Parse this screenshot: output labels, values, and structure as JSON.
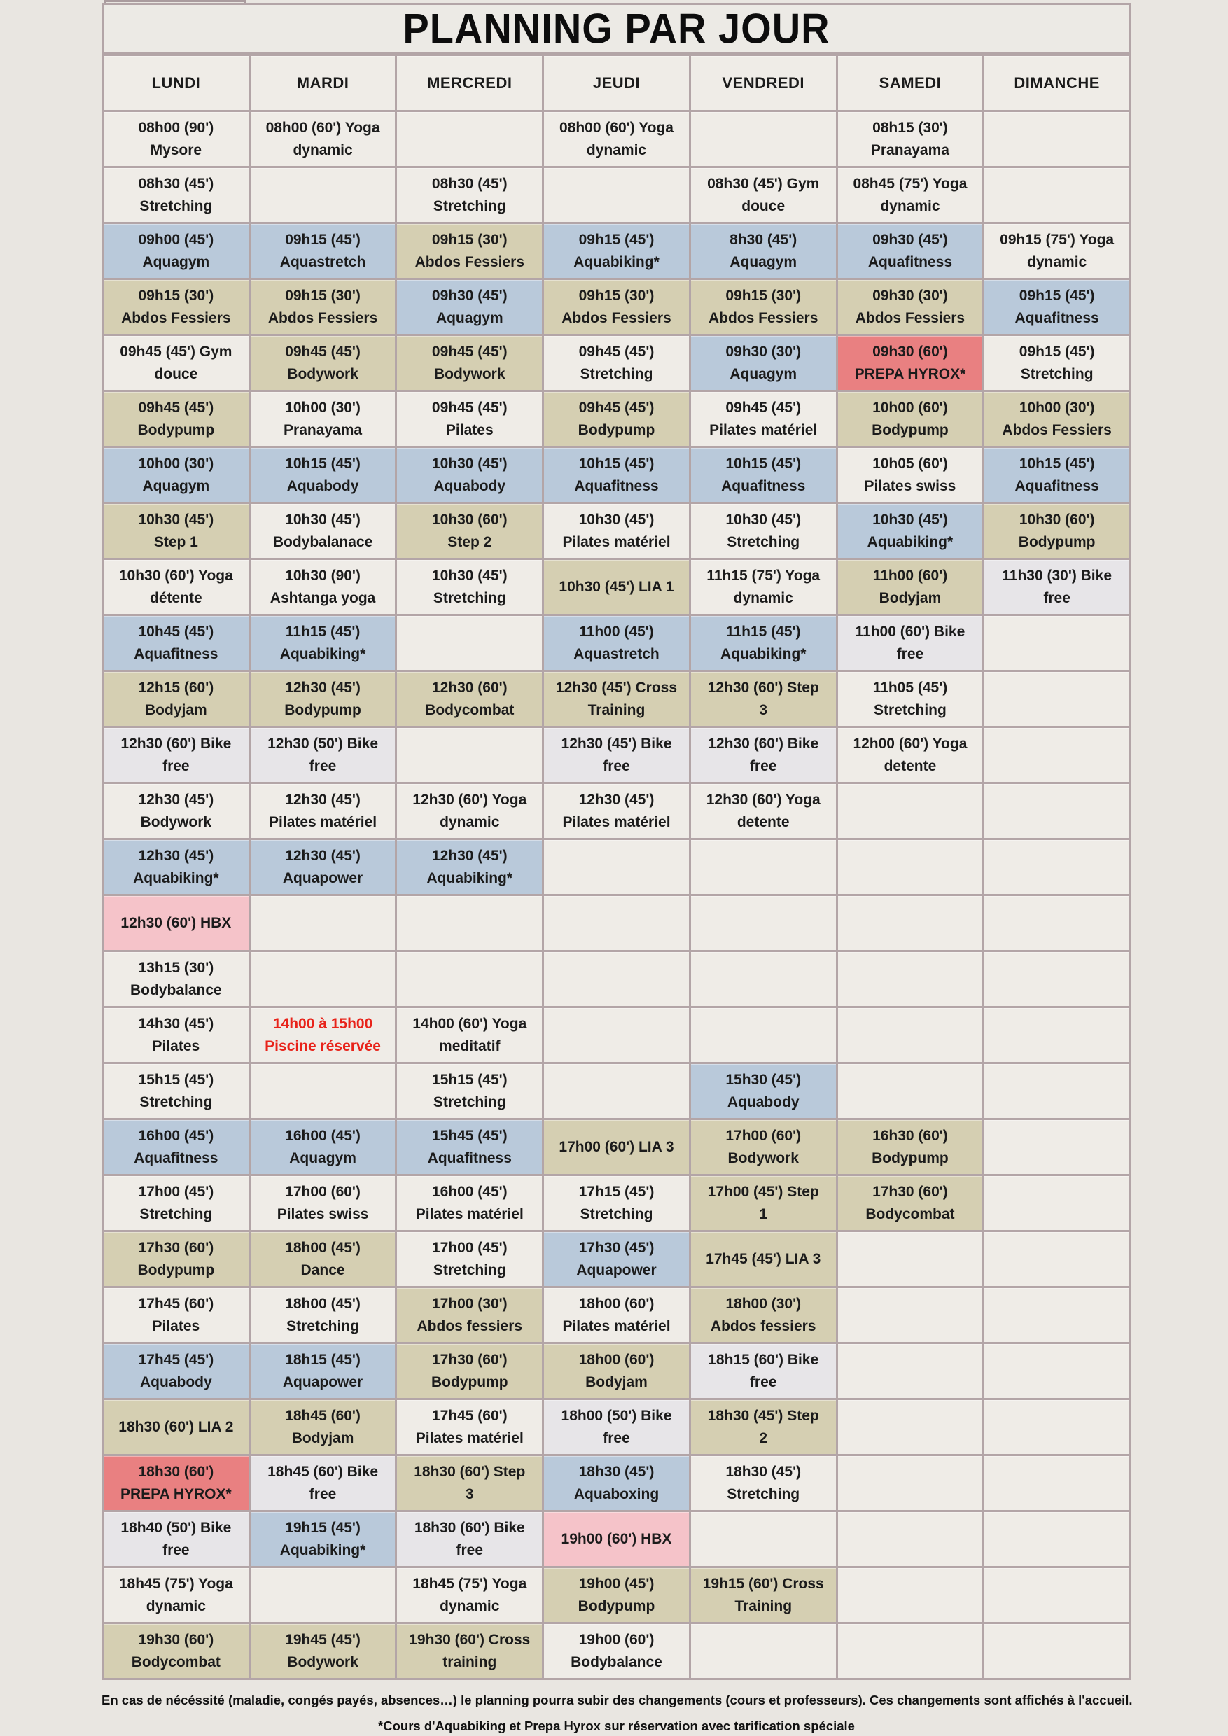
{
  "title": "PLANNING PAR JOUR",
  "days": [
    "LUNDI",
    "MARDI",
    "MERCREDI",
    "JEUDI",
    "VENDREDI",
    "SAMEDI",
    "DIMANCHE"
  ],
  "colors": {
    "light": "#efece7",
    "gray": "#e7e5e8",
    "khaki": "#d5cfb2",
    "blue": "#b9c9da",
    "red": "#e98081",
    "pink": "#f5c3c9",
    "red_text": "#e8231a",
    "border": "#b3a5a7",
    "page_bg": "#e9e6e1"
  },
  "rows": [
    [
      {
        "lines": [
          "08h00 (90')",
          "Mysore"
        ],
        "color": "light"
      },
      {
        "lines": [
          "08h00 (60') Yoga",
          "dynamic"
        ],
        "color": "light"
      },
      null,
      {
        "lines": [
          "08h00 (60') Yoga",
          "dynamic"
        ],
        "color": "light"
      },
      null,
      {
        "lines": [
          "08h15 (30')",
          "Pranayama"
        ],
        "color": "light"
      },
      null
    ],
    [
      {
        "lines": [
          "08h30 (45')",
          "Stretching"
        ],
        "color": "light"
      },
      null,
      {
        "lines": [
          "08h30 (45')",
          "Stretching"
        ],
        "color": "light"
      },
      null,
      {
        "lines": [
          "08h30 (45') Gym",
          "douce"
        ],
        "color": "light"
      },
      {
        "lines": [
          "08h45 (75') Yoga",
          "dynamic"
        ],
        "color": "light"
      },
      null
    ],
    [
      {
        "lines": [
          "09h00 (45')",
          "Aquagym"
        ],
        "color": "blue"
      },
      {
        "lines": [
          "09h15 (45')",
          "Aquastretch"
        ],
        "color": "blue"
      },
      {
        "lines": [
          "09h15 (30')",
          "Abdos Fessiers"
        ],
        "color": "khaki"
      },
      {
        "lines": [
          "09h15 (45')",
          "Aquabiking*"
        ],
        "color": "blue"
      },
      {
        "lines": [
          "8h30 (45')",
          "Aquagym"
        ],
        "color": "blue"
      },
      {
        "lines": [
          "09h30 (45')",
          "Aquafitness"
        ],
        "color": "blue"
      },
      {
        "lines": [
          "09h15 (75') Yoga",
          "dynamic"
        ],
        "color": "light"
      }
    ],
    [
      {
        "lines": [
          "09h15 (30')",
          "Abdos Fessiers"
        ],
        "color": "khaki"
      },
      {
        "lines": [
          "09h15 (30')",
          "Abdos Fessiers"
        ],
        "color": "khaki"
      },
      {
        "lines": [
          "09h30 (45')",
          "Aquagym"
        ],
        "color": "blue"
      },
      {
        "lines": [
          "09h15 (30')",
          "Abdos Fessiers"
        ],
        "color": "khaki"
      },
      {
        "lines": [
          "09h15 (30')",
          "Abdos Fessiers"
        ],
        "color": "khaki"
      },
      {
        "lines": [
          "09h30 (30')",
          "Abdos Fessiers"
        ],
        "color": "khaki"
      },
      {
        "lines": [
          "09h15 (45')",
          "Aquafitness"
        ],
        "color": "blue"
      }
    ],
    [
      {
        "lines": [
          "09h45 (45') Gym",
          "douce"
        ],
        "color": "light"
      },
      {
        "lines": [
          "09h45 (45')",
          "Bodywork"
        ],
        "color": "khaki"
      },
      {
        "lines": [
          "09h45 (45')",
          "Bodywork"
        ],
        "color": "khaki"
      },
      {
        "lines": [
          "09h45 (45')",
          "Stretching"
        ],
        "color": "light"
      },
      {
        "lines": [
          "09h30 (30')",
          "Aquagym"
        ],
        "color": "blue"
      },
      {
        "lines": [
          "09h30 (60')",
          "PREPA HYROX*"
        ],
        "color": "red"
      },
      {
        "lines": [
          "09h15 (45')",
          "Stretching"
        ],
        "color": "light"
      }
    ],
    [
      {
        "lines": [
          "09h45 (45')",
          "Bodypump"
        ],
        "color": "khaki"
      },
      {
        "lines": [
          "10h00 (30')",
          "Pranayama"
        ],
        "color": "light"
      },
      {
        "lines": [
          "09h45 (45')",
          "Pilates"
        ],
        "color": "light"
      },
      {
        "lines": [
          "09h45 (45')",
          "Bodypump"
        ],
        "color": "khaki"
      },
      {
        "lines": [
          "09h45 (45')",
          "Pilates matériel"
        ],
        "color": "light"
      },
      {
        "lines": [
          "10h00 (60')",
          "Bodypump"
        ],
        "color": "khaki"
      },
      {
        "lines": [
          "10h00 (30')",
          "Abdos Fessiers"
        ],
        "color": "khaki"
      }
    ],
    [
      {
        "lines": [
          "10h00 (30')",
          "Aquagym"
        ],
        "color": "blue"
      },
      {
        "lines": [
          "10h15 (45')",
          "Aquabody"
        ],
        "color": "blue"
      },
      {
        "lines": [
          "10h30 (45')",
          "Aquabody"
        ],
        "color": "blue"
      },
      {
        "lines": [
          "10h15 (45')",
          "Aquafitness"
        ],
        "color": "blue"
      },
      {
        "lines": [
          "10h15 (45')",
          "Aquafitness"
        ],
        "color": "blue"
      },
      {
        "lines": [
          "10h05 (60')",
          "Pilates swiss"
        ],
        "color": "light"
      },
      {
        "lines": [
          "10h15 (45')",
          "Aquafitness"
        ],
        "color": "blue"
      }
    ],
    [
      {
        "lines": [
          "10h30 (45')",
          "Step 1"
        ],
        "color": "khaki"
      },
      {
        "lines": [
          "10h30 (45')",
          "Bodybalanace"
        ],
        "color": "light"
      },
      {
        "lines": [
          "10h30 (60')",
          "Step 2"
        ],
        "color": "khaki"
      },
      {
        "lines": [
          "10h30 (45')",
          "Pilates matériel"
        ],
        "color": "light"
      },
      {
        "lines": [
          "10h30 (45')",
          "Stretching"
        ],
        "color": "light"
      },
      {
        "lines": [
          "10h30 (45')",
          "Aquabiking*"
        ],
        "color": "blue"
      },
      {
        "lines": [
          "10h30 (60')",
          "Bodypump"
        ],
        "color": "khaki"
      }
    ],
    [
      {
        "lines": [
          "10h30 (60') Yoga",
          "détente"
        ],
        "color": "light"
      },
      {
        "lines": [
          "10h30 (90')",
          "Ashtanga yoga"
        ],
        "color": "light"
      },
      {
        "lines": [
          "10h30 (45')",
          "Stretching"
        ],
        "color": "light"
      },
      {
        "lines": [
          "10h30 (45') LIA 1"
        ],
        "color": "khaki"
      },
      {
        "lines": [
          "11h15 (75') Yoga",
          "dynamic"
        ],
        "color": "light"
      },
      {
        "lines": [
          "11h00 (60')",
          "Bodyjam"
        ],
        "color": "khaki"
      },
      {
        "lines": [
          "11h30 (30') Bike",
          "free"
        ],
        "color": "gray"
      }
    ],
    [
      {
        "lines": [
          "10h45 (45')",
          "Aquafitness"
        ],
        "color": "blue"
      },
      {
        "lines": [
          "11h15 (45')",
          "Aquabiking*"
        ],
        "color": "blue"
      },
      null,
      {
        "lines": [
          "11h00 (45')",
          "Aquastretch"
        ],
        "color": "blue"
      },
      {
        "lines": [
          "11h15 (45')",
          "Aquabiking*"
        ],
        "color": "blue"
      },
      {
        "lines": [
          "11h00 (60') Bike",
          "free"
        ],
        "color": "gray"
      },
      null
    ],
    [
      {
        "lines": [
          "12h15 (60')",
          "Bodyjam"
        ],
        "color": "khaki"
      },
      {
        "lines": [
          "12h30 (45')",
          "Bodypump"
        ],
        "color": "khaki"
      },
      {
        "lines": [
          "12h30 (60')",
          "Bodycombat"
        ],
        "color": "khaki"
      },
      {
        "lines": [
          "12h30 (45') Cross",
          "Training"
        ],
        "color": "khaki"
      },
      {
        "lines": [
          "12h30 (60') Step",
          "3"
        ],
        "color": "khaki"
      },
      {
        "lines": [
          "11h05 (45')",
          "Stretching"
        ],
        "color": "light"
      },
      null
    ],
    [
      {
        "lines": [
          "12h30 (60') Bike",
          "free"
        ],
        "color": "gray"
      },
      {
        "lines": [
          "12h30 (50') Bike",
          "free"
        ],
        "color": "gray"
      },
      null,
      {
        "lines": [
          "12h30 (45') Bike",
          "free"
        ],
        "color": "gray"
      },
      {
        "lines": [
          "12h30 (60') Bike",
          "free"
        ],
        "color": "gray"
      },
      {
        "lines": [
          "12h00 (60') Yoga",
          "detente"
        ],
        "color": "light"
      },
      null
    ],
    [
      {
        "lines": [
          "12h30 (45')",
          "Bodywork"
        ],
        "color": "light"
      },
      {
        "lines": [
          "12h30 (45')",
          "Pilates matériel"
        ],
        "color": "light"
      },
      {
        "lines": [
          "12h30 (60') Yoga",
          "dynamic"
        ],
        "color": "light"
      },
      {
        "lines": [
          "12h30 (45')",
          "Pilates matériel"
        ],
        "color": "light"
      },
      {
        "lines": [
          "12h30 (60') Yoga",
          "detente"
        ],
        "color": "light"
      },
      null,
      null
    ],
    [
      {
        "lines": [
          "12h30 (45')",
          "Aquabiking*"
        ],
        "color": "blue"
      },
      {
        "lines": [
          "12h30 (45')",
          "Aquapower"
        ],
        "color": "blue"
      },
      {
        "lines": [
          "12h30 (45')",
          "Aquabiking*"
        ],
        "color": "blue"
      },
      null,
      null,
      null,
      null
    ],
    [
      {
        "lines": [
          "12h30 (60') HBX"
        ],
        "color": "pink"
      },
      null,
      null,
      null,
      null,
      null,
      null
    ],
    [
      {
        "lines": [
          "13h15 (30')",
          "Bodybalance"
        ],
        "color": "light"
      },
      null,
      null,
      null,
      null,
      null,
      null
    ],
    [
      {
        "lines": [
          "14h30 (45')",
          "Pilates"
        ],
        "color": "light"
      },
      {
        "lines": [
          "14h00 à 15h00",
          "Piscine réservée"
        ],
        "color": "light",
        "text_color": "red"
      },
      {
        "lines": [
          "14h00 (60') Yoga",
          "meditatif"
        ],
        "color": "light"
      },
      null,
      null,
      null,
      null
    ],
    [
      {
        "lines": [
          "15h15 (45')",
          "Stretching"
        ],
        "color": "light"
      },
      null,
      {
        "lines": [
          "15h15 (45')",
          "Stretching"
        ],
        "color": "light"
      },
      null,
      {
        "lines": [
          "15h30 (45')",
          "Aquabody"
        ],
        "color": "blue"
      },
      null,
      null
    ],
    [
      {
        "lines": [
          "16h00 (45')",
          "Aquafitness"
        ],
        "color": "blue"
      },
      {
        "lines": [
          "16h00 (45')",
          "Aquagym"
        ],
        "color": "blue"
      },
      {
        "lines": [
          "15h45 (45')",
          "Aquafitness"
        ],
        "color": "blue"
      },
      {
        "lines": [
          "17h00 (60') LIA 3"
        ],
        "color": "khaki"
      },
      {
        "lines": [
          "17h00 (60')",
          "Bodywork"
        ],
        "color": "khaki"
      },
      {
        "lines": [
          "16h30 (60')",
          "Bodypump"
        ],
        "color": "khaki"
      },
      null
    ],
    [
      {
        "lines": [
          "17h00 (45')",
          "Stretching"
        ],
        "color": "light"
      },
      {
        "lines": [
          "17h00 (60')",
          "Pilates swiss"
        ],
        "color": "light"
      },
      {
        "lines": [
          "16h00 (45')",
          "Pilates matériel"
        ],
        "color": "light"
      },
      {
        "lines": [
          "17h15 (45')",
          "Stretching"
        ],
        "color": "light"
      },
      {
        "lines": [
          "17h00 (45') Step",
          "1"
        ],
        "color": "khaki"
      },
      {
        "lines": [
          "17h30 (60')",
          "Bodycombat"
        ],
        "color": "khaki"
      },
      null
    ],
    [
      {
        "lines": [
          "17h30 (60')",
          "Bodypump"
        ],
        "color": "khaki"
      },
      {
        "lines": [
          "18h00 (45')",
          "Dance"
        ],
        "color": "khaki"
      },
      {
        "lines": [
          "17h00 (45')",
          "Stretching"
        ],
        "color": "light"
      },
      {
        "lines": [
          "17h30 (45')",
          "Aquapower"
        ],
        "color": "blue"
      },
      {
        "lines": [
          "17h45 (45') LIA 3"
        ],
        "color": "khaki"
      },
      null,
      null
    ],
    [
      {
        "lines": [
          "17h45 (60')",
          "Pilates"
        ],
        "color": "light"
      },
      {
        "lines": [
          "18h00 (45')",
          "Stretching"
        ],
        "color": "light"
      },
      {
        "lines": [
          "17h00 (30')",
          "Abdos fessiers"
        ],
        "color": "khaki"
      },
      {
        "lines": [
          "18h00 (60')",
          "Pilates matériel"
        ],
        "color": "light"
      },
      {
        "lines": [
          "18h00 (30')",
          "Abdos fessiers"
        ],
        "color": "khaki"
      },
      null,
      null
    ],
    [
      {
        "lines": [
          "17h45 (45')",
          "Aquabody"
        ],
        "color": "blue"
      },
      {
        "lines": [
          "18h15 (45')",
          "Aquapower"
        ],
        "color": "blue"
      },
      {
        "lines": [
          "17h30 (60')",
          "Bodypump"
        ],
        "color": "khaki"
      },
      {
        "lines": [
          "18h00 (60')",
          "Bodyjam"
        ],
        "color": "khaki"
      },
      {
        "lines": [
          "18h15 (60') Bike",
          "free"
        ],
        "color": "gray"
      },
      null,
      null
    ],
    [
      {
        "lines": [
          "18h30 (60') LIA 2"
        ],
        "color": "khaki"
      },
      {
        "lines": [
          "18h45 (60')",
          "Bodyjam"
        ],
        "color": "khaki"
      },
      {
        "lines": [
          "17h45 (60')",
          "Pilates matériel"
        ],
        "color": "light"
      },
      {
        "lines": [
          "18h00 (50') Bike",
          "free"
        ],
        "color": "gray"
      },
      {
        "lines": [
          "18h30 (45') Step",
          "2"
        ],
        "color": "khaki"
      },
      null,
      null
    ],
    [
      {
        "lines": [
          "18h30 (60')",
          "PREPA HYROX*"
        ],
        "color": "red"
      },
      {
        "lines": [
          "18h45 (60') Bike",
          "free"
        ],
        "color": "gray"
      },
      {
        "lines": [
          "18h30 (60') Step",
          "3"
        ],
        "color": "khaki"
      },
      {
        "lines": [
          "18h30 (45')",
          "Aquaboxing"
        ],
        "color": "blue"
      },
      {
        "lines": [
          "18h30 (45')",
          "Stretching"
        ],
        "color": "light"
      },
      null,
      null
    ],
    [
      {
        "lines": [
          "18h40 (50') Bike",
          "free"
        ],
        "color": "gray"
      },
      {
        "lines": [
          "19h15 (45')",
          "Aquabiking*"
        ],
        "color": "blue"
      },
      {
        "lines": [
          "18h30 (60') Bike",
          "free"
        ],
        "color": "gray"
      },
      {
        "lines": [
          "19h00 (60') HBX"
        ],
        "color": "pink"
      },
      null,
      null,
      null
    ],
    [
      {
        "lines": [
          "18h45 (75') Yoga",
          "dynamic"
        ],
        "color": "light"
      },
      null,
      {
        "lines": [
          "18h45 (75') Yoga",
          "dynamic"
        ],
        "color": "light"
      },
      {
        "lines": [
          "19h00 (45')",
          "Bodypump"
        ],
        "color": "khaki"
      },
      {
        "lines": [
          "19h15 (60') Cross",
          "Training"
        ],
        "color": "khaki"
      },
      null,
      null
    ],
    [
      {
        "lines": [
          "19h30 (60')",
          "Bodycombat"
        ],
        "color": "khaki"
      },
      {
        "lines": [
          "19h45 (45')",
          "Bodywork"
        ],
        "color": "khaki"
      },
      {
        "lines": [
          "19h30 (60') Cross",
          "training"
        ],
        "color": "khaki"
      },
      {
        "lines": [
          "19h00 (60')",
          "Bodybalance"
        ],
        "color": "light"
      },
      null,
      null,
      null
    ]
  ],
  "footer": {
    "note1": "En cas de nécéssité (maladie, congés payés, absences…) le planning pourra subir des changements (cours et professeurs). Ces changements sont affichés à l'accueil.",
    "note2": "*Cours d'Aquabiking et Prepa Hyrox sur réservation avec tarification spéciale"
  }
}
